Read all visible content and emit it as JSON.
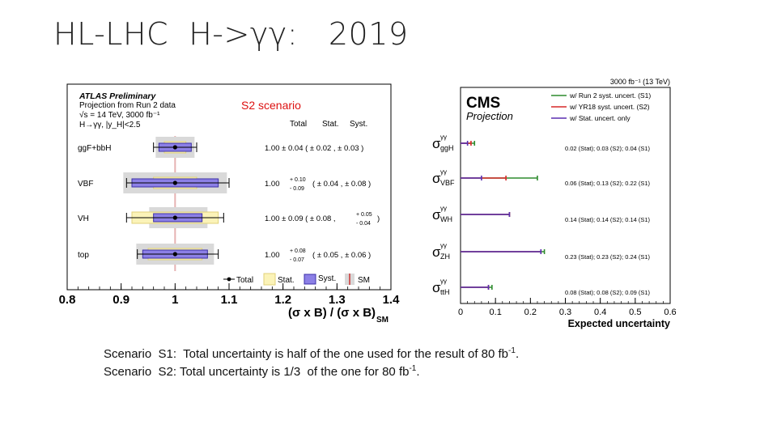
{
  "slide": {
    "title": "HL-LHC  H->γγ:   2019"
  },
  "captions": {
    "line1_text": "Scenario  S1:  Total uncertainty is half of the one used for the result of 80 fb",
    "line1_sup": "-1",
    "line1_end": ".",
    "line2_text": "Scenario  S2: Total uncertainty is 1/3  of the one for 80 fb",
    "line2_sup": "-1",
    "line2_end": "."
  },
  "chart_data": [
    {
      "type": "horizontal-interval",
      "overlay_label": "S2 scenario",
      "header": [
        "ATLAS Preliminary",
        "Projection from Run 2 data",
        "√s = 14 TeV, 3000 fb⁻¹",
        "H→γγ, |y_H|<2.5"
      ],
      "columns": [
        "Total",
        "Stat.",
        "Syst."
      ],
      "xlim": [
        0.8,
        1.4
      ],
      "xticks": [
        "0.8",
        "0.9",
        "1",
        "1.1",
        "1.2",
        "1.3",
        "1.4"
      ],
      "xlabel": "(σ x B) / (σ x B)",
      "xlabel_sub": "SM",
      "legend": [
        "Total",
        "Stat.",
        "Syst.",
        "SM"
      ],
      "rows": [
        {
          "label": "ggF+bbH",
          "value": 1.0,
          "total": [
            0.04,
            0.04
          ],
          "stat": [
            0.02,
            0.02
          ],
          "syst": [
            0.03,
            0.03
          ],
          "text": "1.00 ± 0.04  ( ± 0.02 ,  ± 0.03  )"
        },
        {
          "label": "VBF",
          "value": 1.0,
          "total": [
            0.09,
            0.1
          ],
          "stat": [
            0.04,
            0.04
          ],
          "syst": [
            0.08,
            0.08
          ],
          "text_value": "1.00",
          "text_up": "+ 0.10",
          "text_down": "- 0.09",
          "text_rest": "( ± 0.04 ,  ± 0.08  )"
        },
        {
          "label": "VH",
          "value": 1.0,
          "total": [
            0.09,
            0.09
          ],
          "stat": [
            0.08,
            0.08
          ],
          "syst": [
            0.04,
            0.05
          ],
          "text_main": "1.00 ± 0.09  ( ± 0.08 ,",
          "text_up": "+ 0.05",
          "text_down": "- 0.04",
          "text_end": ")"
        },
        {
          "label": "top",
          "value": 1.0,
          "total": [
            0.07,
            0.08
          ],
          "stat": [
            0.05,
            0.05
          ],
          "syst": [
            0.06,
            0.06
          ],
          "text_value": "1.00",
          "text_up": "+ 0.08",
          "text_down": "- 0.07",
          "text_rest": "( ± 0.05 ,  ± 0.06  )"
        }
      ]
    },
    {
      "type": "horizontal-error-bars",
      "title": "CMS",
      "subtitle": "Projection",
      "lumi": "3000 fb⁻¹ (13 TeV)",
      "xlim": [
        0,
        0.6
      ],
      "xticks": [
        "0",
        "0.1",
        "0.2",
        "0.3",
        "0.4",
        "0.5",
        "0.6"
      ],
      "xlabel": "Expected uncertainty",
      "series": [
        {
          "name": "w/ Run 2 syst. uncert. (S1)",
          "color": "#2e8b2e"
        },
        {
          "name": "w/ YR18 syst. uncert. (S2)",
          "color": "#d62828"
        },
        {
          "name": "w/ Stat. uncert. only",
          "color": "#5a2fb0"
        }
      ],
      "rows": [
        {
          "label": "σ",
          "label_sup": "γγ",
          "label_sub": "ggH",
          "stat": 0.02,
          "s2": 0.03,
          "s1": 0.04,
          "text": "0.02 (Stat); 0.03 (S2); 0.04 (S1)"
        },
        {
          "label": "σ",
          "label_sup": "γγ",
          "label_sub": "VBF",
          "stat": 0.06,
          "s2": 0.13,
          "s1": 0.22,
          "text": "0.06 (Stat); 0.13 (S2); 0.22 (S1)"
        },
        {
          "label": "σ",
          "label_sup": "γγ",
          "label_sub": "WH",
          "stat": 0.14,
          "s2": 0.14,
          "s1": 0.14,
          "text": "0.14 (Stat); 0.14 (S2); 0.14 (S1)"
        },
        {
          "label": "σ",
          "label_sup": "γγ",
          "label_sub": "ZH",
          "stat": 0.23,
          "s2": 0.23,
          "s1": 0.24,
          "text": "0.23 (Stat); 0.23 (S2); 0.24 (S1)"
        },
        {
          "label": "σ",
          "label_sup": "γγ",
          "label_sub": "ttH",
          "stat": 0.08,
          "s2": 0.08,
          "s1": 0.09,
          "text": "0.08 (Stat); 0.08 (S2); 0.09 (S1)"
        }
      ]
    }
  ]
}
